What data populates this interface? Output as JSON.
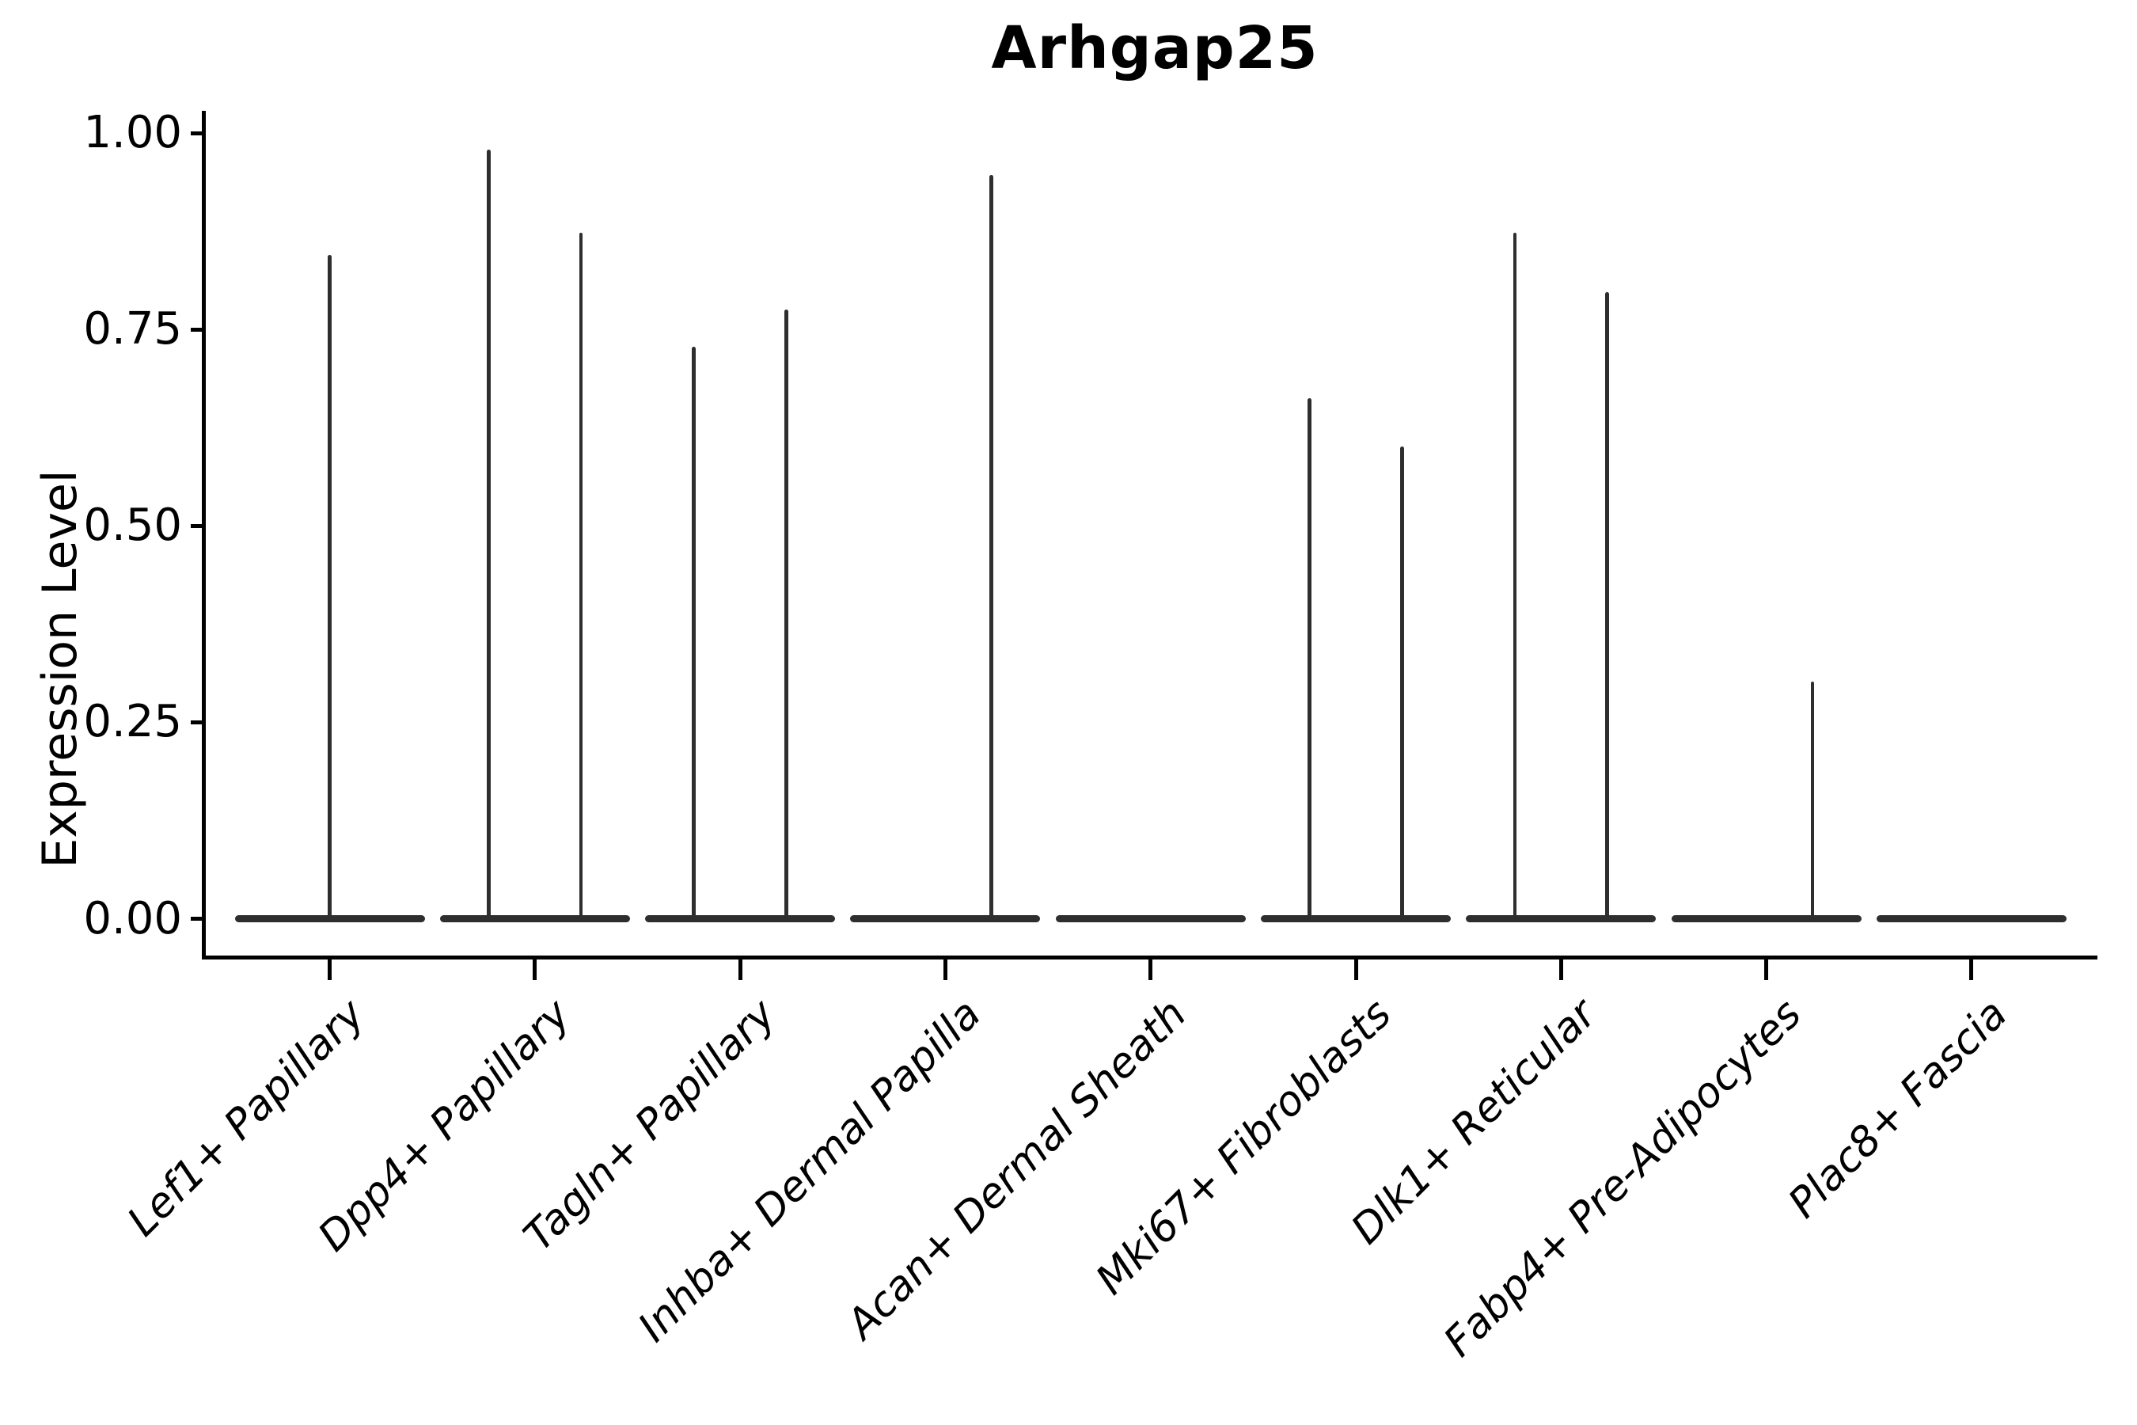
{
  "title": "Arhgap25",
  "y_axis": {
    "label": "Expression Level",
    "ticks": [
      {
        "label": "1.00",
        "value": 1.0
      },
      {
        "label": "0.75",
        "value": 0.75
      },
      {
        "label": "0.50",
        "value": 0.5
      },
      {
        "label": "0.25",
        "value": 0.25
      },
      {
        "label": "0.00",
        "value": 0.0
      }
    ]
  },
  "x_axis": {
    "categories": [
      "Lef1+ Papillary",
      "Dpp4+ Papillary",
      "Tagln+ Papillary",
      "Inhba+ Dermal Papilla",
      "Acan+ Dermal Sheath",
      "Mki67+ Fibroblasts",
      "Dlk1+ Reticular",
      "Fabp4+ Pre-Adipocytes",
      "Plac8+ Fascia"
    ]
  },
  "chart_data": {
    "type": "violin",
    "title": "Arhgap25",
    "xlabel": "",
    "ylabel": "Expression Level",
    "ylim": [
      0,
      1.0
    ],
    "grid": false,
    "legend": "none",
    "description": "Needle-shaped violins: each category has a wide flat density base at expression 0 and thin vertical density spikes reaching the maximum expression value. Spike offset is the horizontal position as a fraction of category spacing relative to the category center.",
    "categories": [
      "Lef1+ Papillary",
      "Dpp4+ Papillary",
      "Tagln+ Papillary",
      "Inhba+ Dermal Papilla",
      "Acan+ Dermal Sheath",
      "Mki67+ Fibroblasts",
      "Dlk1+ Reticular",
      "Fabp4+ Pre-Adipocytes",
      "Plac8+ Fascia"
    ],
    "series": [
      {
        "label": "Lef1+ Papillary",
        "peaks": [
          {
            "offset": 0.0,
            "max": 0.845
          }
        ]
      },
      {
        "label": "Dpp4+ Papillary",
        "peaks": [
          {
            "offset": -0.225,
            "max": 0.979
          },
          {
            "offset": 0.225,
            "max": 0.873
          }
        ]
      },
      {
        "label": "Tagln+ Papillary",
        "peaks": [
          {
            "offset": -0.225,
            "max": 0.728
          },
          {
            "offset": 0.225,
            "max": 0.775
          }
        ]
      },
      {
        "label": "Inhba+ Dermal Papilla",
        "peaks": [
          {
            "offset": 0.225,
            "max": 0.947
          }
        ]
      },
      {
        "label": "Acan+ Dermal Sheath",
        "peaks": []
      },
      {
        "label": "Mki67+ Fibroblasts",
        "peaks": [
          {
            "offset": -0.225,
            "max": 0.662
          },
          {
            "offset": 0.225,
            "max": 0.601
          }
        ]
      },
      {
        "label": "Dlk1+ Reticular",
        "peaks": [
          {
            "offset": -0.225,
            "max": 0.873
          },
          {
            "offset": 0.225,
            "max": 0.797
          }
        ]
      },
      {
        "label": "Fabp4+ Pre-Adipocytes",
        "peaks": [
          {
            "offset": 0.225,
            "max": 0.302
          }
        ]
      },
      {
        "label": "Plac8+ Fascia",
        "peaks": []
      }
    ]
  },
  "colors": {
    "violin": "#2e2e2e",
    "axis": "#000000",
    "text": "#000000",
    "background": "#ffffff"
  }
}
